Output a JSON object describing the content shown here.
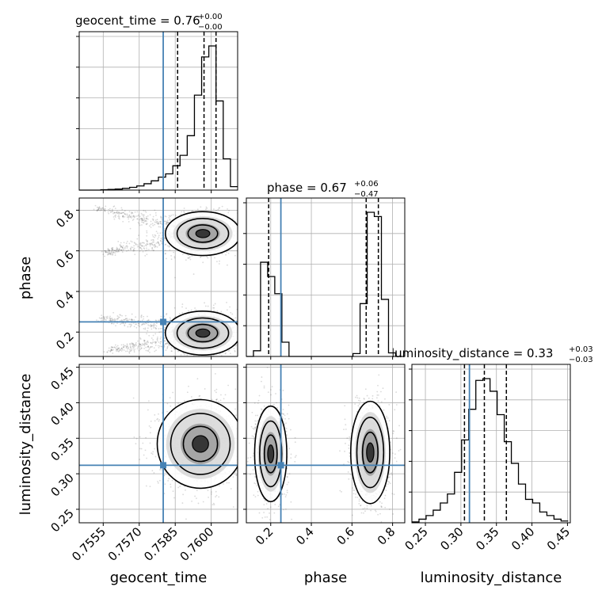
{
  "chart_data": {
    "type": "corner",
    "grid": true,
    "truth_color": "#4682b4",
    "contour_color": "#000000",
    "parameters": [
      {
        "name": "geocent_time",
        "title": "geocent_time = 0.76",
        "title_plus": "+0.00",
        "title_minus": "−0.00",
        "range": [
          0.7545,
          0.7611
        ],
        "ticks": [
          0.7555,
          0.757,
          0.7585,
          0.76
        ],
        "tick_labels": [
          "0.7555",
          "0.7570",
          "0.7585",
          "0.7600"
        ],
        "truth": 0.758,
        "quantiles": [
          0.7586,
          0.7597,
          0.7602
        ],
        "histogram": {
          "edges": [
            0.7545,
            0.7548,
            0.7551,
            0.7554,
            0.7557,
            0.756,
            0.7563,
            0.7566,
            0.7569,
            0.7572,
            0.7575,
            0.7578,
            0.7581,
            0.7584,
            0.7587,
            0.759,
            0.7593,
            0.7596,
            0.7599,
            0.7602,
            0.7605,
            0.7608,
            0.7611
          ],
          "counts": [
            0,
            0,
            0,
            3,
            6,
            9,
            15,
            24,
            36,
            55,
            80,
            112,
            140,
            210,
            300,
            470,
            820,
            1150,
            1245,
            770,
            270,
            30
          ]
        }
      },
      {
        "name": "phase",
        "title": "phase = 0.67",
        "title_plus": "+0.06",
        "title_minus": "−0.47",
        "range": [
          0.08,
          0.86
        ],
        "ticks": [
          0.2,
          0.4,
          0.6,
          0.8
        ],
        "tick_labels": [
          "0.2",
          "0.4",
          "0.6",
          "0.8"
        ],
        "truth": 0.25,
        "quantiles": [
          0.19,
          0.67,
          0.73
        ],
        "histogram": {
          "edges": [
            0.08,
            0.115,
            0.15,
            0.185,
            0.22,
            0.255,
            0.29,
            0.325,
            0.36,
            0.395,
            0.43,
            0.465,
            0.5,
            0.535,
            0.57,
            0.605,
            0.64,
            0.675,
            0.71,
            0.745,
            0.78,
            0.815,
            0.85
          ],
          "counts": [
            0,
            40,
            660,
            560,
            440,
            100,
            0,
            0,
            0,
            0,
            0,
            0,
            0,
            0,
            0,
            20,
            370,
            1010,
            980,
            400,
            25,
            0
          ]
        }
      },
      {
        "name": "luminosity_distance",
        "title": "luminosity_distance = 0.33",
        "title_plus": "+0.03",
        "title_minus": "−0.03",
        "range": [
          0.231,
          0.454
        ],
        "ticks": [
          0.25,
          0.3,
          0.35,
          0.4,
          0.45
        ],
        "tick_labels": [
          "0.25",
          "0.30",
          "0.35",
          "0.40",
          "0.45"
        ],
        "truth": 0.312,
        "quantiles": [
          0.305,
          0.333,
          0.364
        ],
        "histogram": {
          "edges": [
            0.231,
            0.241,
            0.251,
            0.261,
            0.271,
            0.281,
            0.291,
            0.301,
            0.311,
            0.321,
            0.331,
            0.341,
            0.351,
            0.361,
            0.371,
            0.381,
            0.391,
            0.401,
            0.411,
            0.421,
            0.431,
            0.441,
            0.451
          ],
          "counts": [
            5,
            20,
            40,
            70,
            110,
            160,
            280,
            460,
            630,
            790,
            800,
            730,
            600,
            450,
            330,
            215,
            130,
            110,
            60,
            40,
            20,
            10
          ]
        }
      }
    ],
    "joint_2d": [
      {
        "x": "geocent_time",
        "y": "phase",
        "modes": [
          {
            "cx": 0.75965,
            "cy": 0.685,
            "sx": 0.00065,
            "sy": 0.045
          },
          {
            "cx": 0.75965,
            "cy": 0.195,
            "sx": 0.00065,
            "sy": 0.045
          }
        ],
        "tails": [
          {
            "x0": 0.7552,
            "y0": 0.81,
            "x1": 0.7584,
            "y1": 0.73
          },
          {
            "x0": 0.7555,
            "y0": 0.59,
            "x1": 0.7585,
            "y1": 0.66
          },
          {
            "x0": 0.7553,
            "y0": 0.27,
            "x1": 0.7586,
            "y1": 0.22
          },
          {
            "x0": 0.7557,
            "y0": 0.11,
            "x1": 0.7587,
            "y1": 0.16
          }
        ]
      },
      {
        "x": "geocent_time",
        "y": "luminosity_distance",
        "modes": [
          {
            "cx": 0.75955,
            "cy": 0.342,
            "sx": 0.00075,
            "sy": 0.026
          }
        ],
        "tails": []
      },
      {
        "x": "phase",
        "y": "luminosity_distance",
        "modes": [
          {
            "cx": 0.2,
            "cy": 0.328,
            "sx": 0.033,
            "sy": 0.028
          },
          {
            "cx": 0.69,
            "cy": 0.33,
            "sx": 0.04,
            "sy": 0.03
          }
        ],
        "tails": []
      }
    ]
  }
}
